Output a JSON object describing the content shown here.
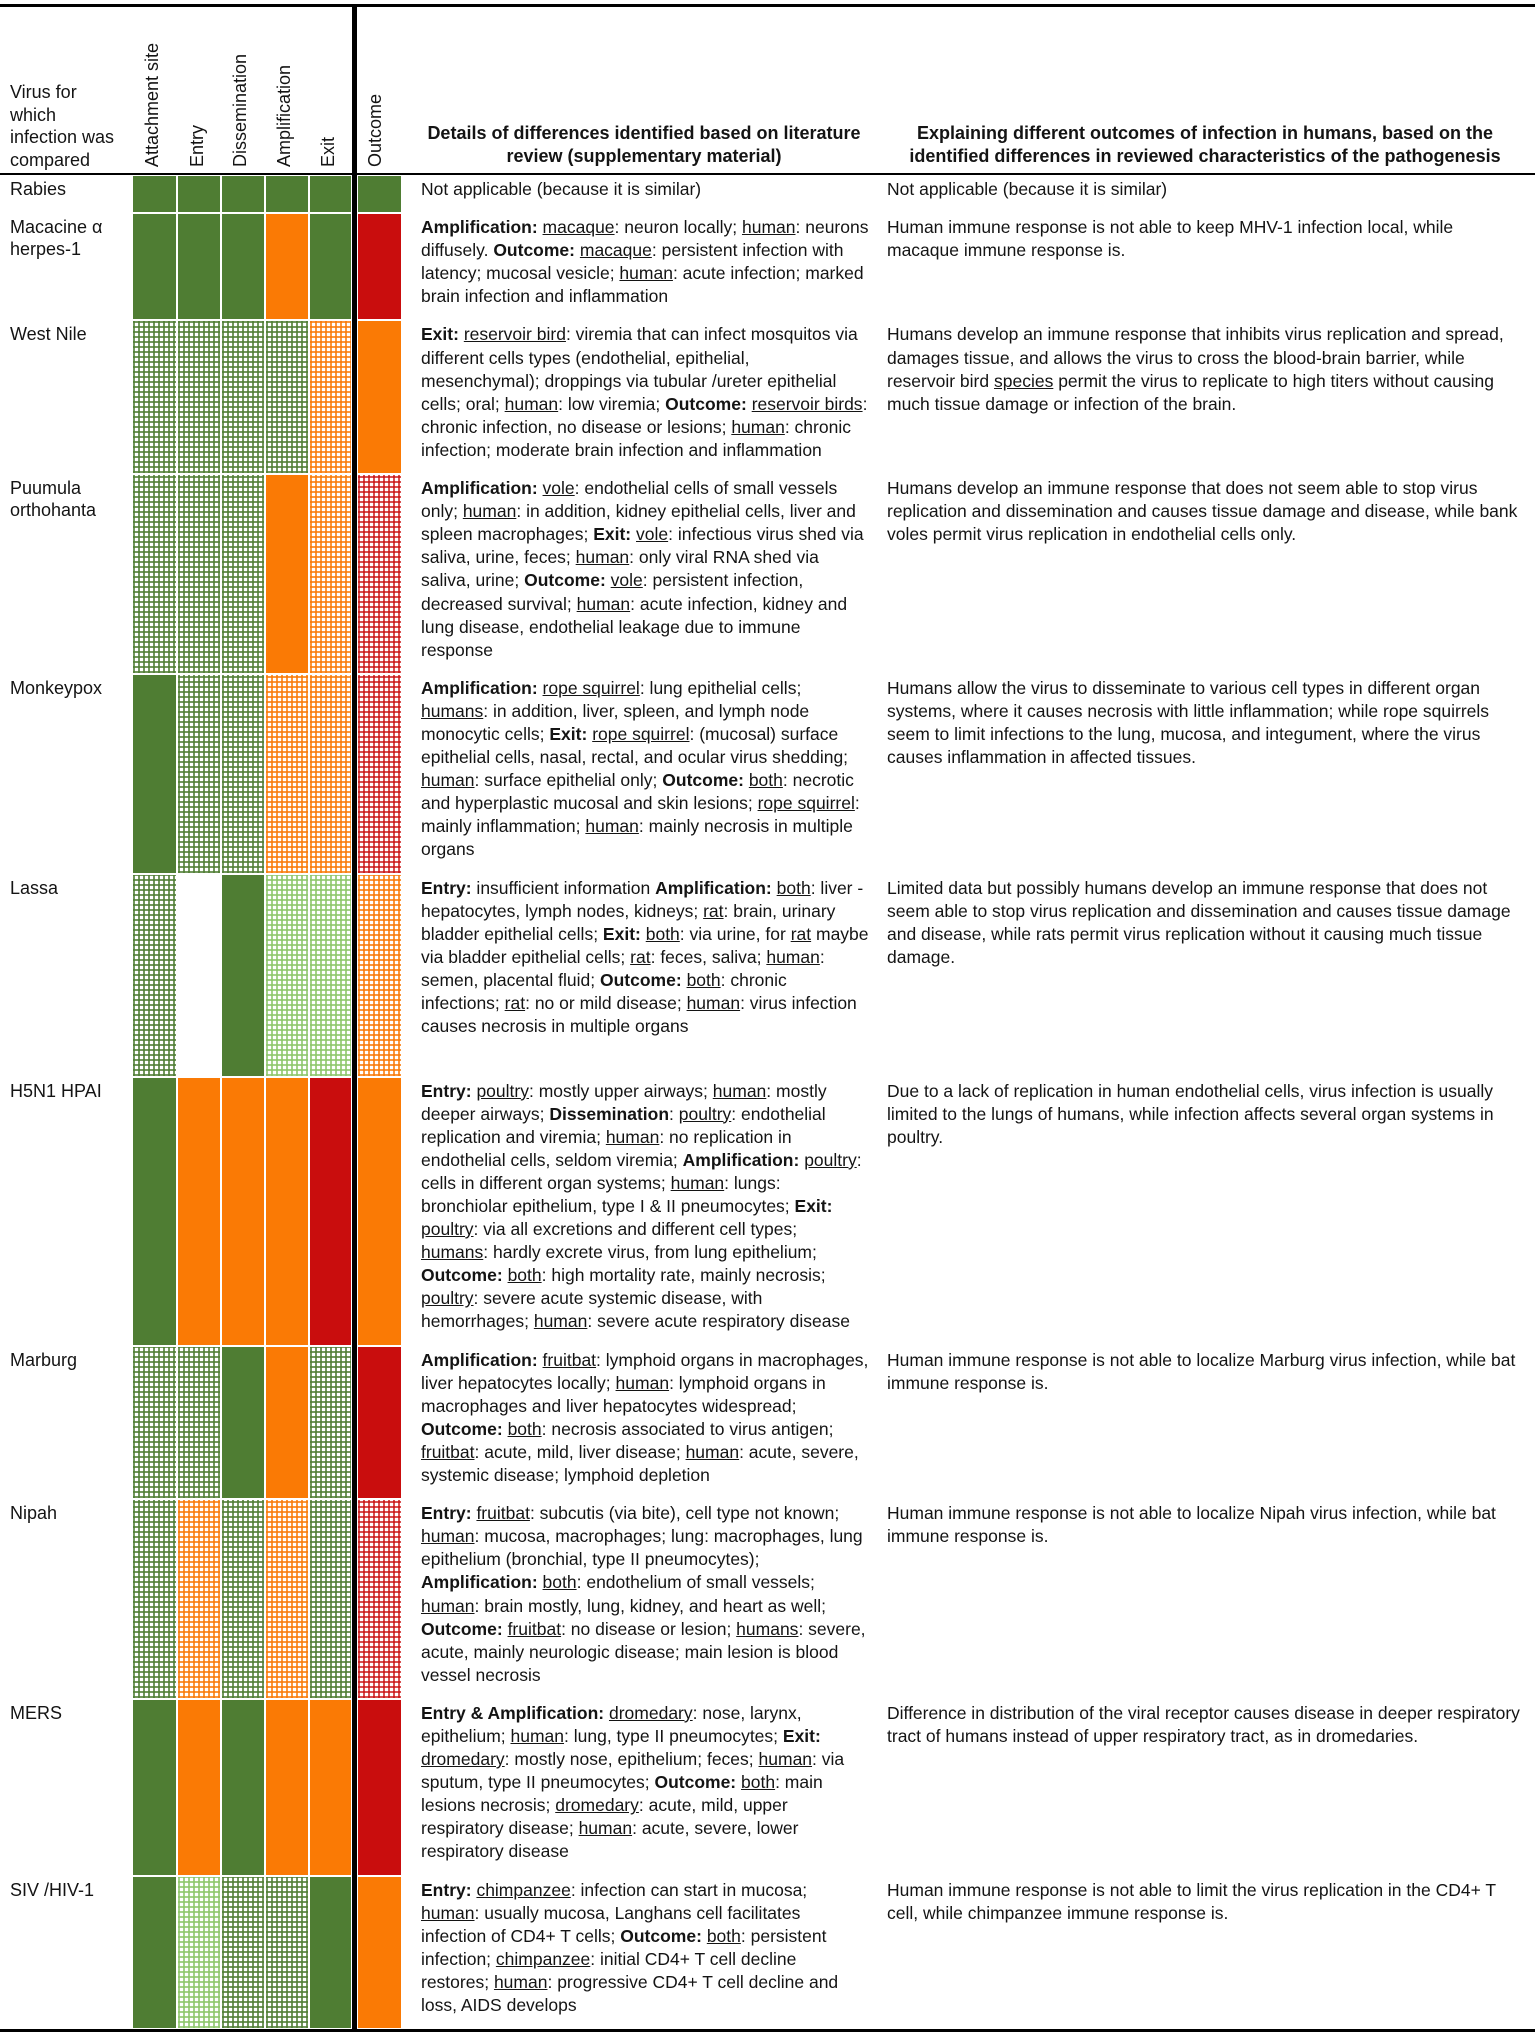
{
  "header": {
    "virus_col": "Virus for which infection was compared",
    "stage_cols": [
      "Attachment site",
      "Entry",
      "Dissemination",
      "Amplification",
      "Exit",
      "Outcome"
    ],
    "details_col": "Details of differences identified based on literature review (supplementary material)",
    "explaining_col": "Explaining different outcomes of infection in humans, based on the identified differences in reviewed characteristics of the pathogenesis"
  },
  "colors": {
    "green": "#4f7d33",
    "orange": "#fa7a05",
    "red": "#c90d0d",
    "light_green": "#8dc66a"
  },
  "cell_codes": {
    "green": "solid green",
    "orange": "solid orange",
    "red": "solid dark red",
    "green-hatch": "hatched green",
    "orange-hatch": "hatched orange",
    "red-hatch": "hatched dark red",
    "lightgreen-hatch": "hatched light green",
    "white": "no data (blank)"
  },
  "rows": [
    {
      "virus": "Rabies",
      "cells": [
        "green",
        "green",
        "green",
        "green",
        "green",
        "green"
      ],
      "details_html": "Not applicable (because it is similar)",
      "explaining_html": "Not applicable (because it is similar)"
    },
    {
      "virus": "Macacine α herpes-1",
      "cells": [
        "green",
        "green",
        "green",
        "orange",
        "green",
        "red"
      ],
      "details_html": "<b>Amplification:</b> <u>macaque</u>: neuron locally; <u>human</u>: neurons diffusely. <b>Outcome:</b> <u>macaque</u>: persistent infection with latency; mucosal vesicle; <u>human</u>: acute infection; marked brain infection and inflammation",
      "explaining_html": "Human immune response is not able to keep MHV-1 infection local, while macaque immune response is."
    },
    {
      "virus": "West Nile",
      "cells": [
        "green-hatch",
        "green-hatch",
        "green-hatch",
        "green-hatch",
        "orange-hatch",
        "orange"
      ],
      "details_html": "<b>Exit:</b> <u>reservoir bird</u>: viremia that can infect mosquitos via different cells types (endothelial, epithelial, mesenchymal); droppings via tubular /ureter epithelial cells; oral; <u>human</u>: low viremia; <b>Outcome:</b> <u>reservoir birds</u>: chronic infection, no disease or lesions; <u>human</u>: chronic infection; moderate brain infection and inflammation",
      "explaining_html": "Humans develop an immune response that inhibits virus replication and spread, damages tissue, and allows the virus to cross the blood-brain barrier, while reservoir bird <u>species</u> permit the virus to replicate to high titers without causing much tissue damage or infection of the brain."
    },
    {
      "virus": "Puumula orthohanta",
      "cells": [
        "green-hatch",
        "green-hatch",
        "green-hatch",
        "orange",
        "orange-hatch",
        "red-hatch"
      ],
      "details_html": "<b>Amplification:</b> <u>vole</u>: endothelial cells of small vessels only; <u>human</u>: in addition, kidney epithelial cells, liver and spleen macrophages; <b>Exit:</b> <u>vole</u>: infectious virus shed via saliva, urine, feces; <u>human</u>: only viral RNA shed via saliva, urine; <b>Outcome:</b> <u>vole</u>: persistent infection, decreased survival; <u>human</u>: acute infection, kidney and lung disease, endothelial leakage due to immune response",
      "explaining_html": "Humans develop an immune response that does not seem able to stop virus replication and dissemination and causes tissue damage and disease, while bank voles permit virus replication in endothelial cells only."
    },
    {
      "virus": "Monkeypox",
      "cells": [
        "green",
        "green-hatch",
        "green-hatch",
        "orange-hatch",
        "orange-hatch",
        "red-hatch"
      ],
      "details_html": "<b>Amplification:</b> <u>rope squirrel</u>: lung epithelial cells; <u>humans</u>: in addition, liver, spleen, and lymph node monocytic cells; <b>Exit:</b> <u>rope squirrel</u>: (mucosal) surface epithelial cells, nasal, rectal, and ocular virus shedding; <u>human</u>: surface epithelial only; <b>Outcome:</b> <u>both</u>: necrotic and hyperplastic mucosal and skin lesions; <u>rope squirrel</u>: mainly inflammation; <u>human</u>: mainly necrosis in multiple organs",
      "explaining_html": "Humans allow the virus to disseminate to various cell types in different organ systems, where it causes necrosis with little inflammation; while rope squirrels seem to limit infections to the lung, mucosa, and integument, where the virus causes inflammation in affected tissues."
    },
    {
      "virus": "Lassa",
      "cells": [
        "green-hatch",
        "white",
        "green",
        "lightgreen-hatch",
        "lightgreen-hatch",
        "orange-hatch"
      ],
      "details_html": "<b>Entry:</b> insufficient information <b>Amplification:</b> <u>both</u>: liver - hepatocytes, lymph nodes, kidneys; <u>rat</u>: brain, urinary bladder epithelial cells; <b>Exit:</b> <u>both</u>: via urine, for <u>rat</u> maybe via bladder epithelial cells; <u>rat</u>: feces, saliva; <u>human</u>: semen, placental fluid; <b>Outcome:</b> <u>both</u>: chronic infections; <u>rat</u>: no or mild disease; <u>human</u>: virus infection causes necrosis in multiple organs",
      "explaining_html": "Limited data but possibly humans develop an immune response that does not seem able to stop virus replication and dissemination and causes tissue damage and disease, while rats permit virus replication without it causing much tissue damage."
    },
    {
      "virus": "H5N1 HPAI",
      "cells": [
        "green",
        "orange",
        "orange",
        "orange",
        "red",
        "orange"
      ],
      "details_html": "<b>Entry:</b> <u>poultry</u>: mostly upper airways; <u>human</u>: mostly deeper airways; <b>Dissemination</b>: <u>poultry</u>: endothelial replication and viremia; <u>human</u>: no replication in endothelial cells, seldom viremia; <b>Amplification:</b> <u>poultry</u>: cells in different organ systems; <u>human</u>: lungs: bronchiolar epithelium, type I &amp; II pneumocytes; <b>Exit:</b> <u>poultry</u>: via all excretions and different cell types; <u>humans</u>: hardly excrete virus, from lung epithelium; <b>Outcome:</b> <u>both</u>: high mortality rate, mainly necrosis; <u>poultry</u>: severe acute systemic disease, with hemorrhages; <u>human</u>: severe acute respiratory disease",
      "explaining_html": "Due to a lack of replication in human endothelial cells, virus infection is usually limited to the lungs of humans, while infection affects several organ systems in poultry."
    },
    {
      "virus": "Marburg",
      "cells": [
        "green-hatch",
        "green-hatch",
        "green",
        "orange",
        "green-hatch",
        "red"
      ],
      "details_html": "<b>Amplification:</b> <u>fruitbat</u>: lymphoid organs in macrophages, liver hepatocytes locally; <u>human</u>: lymphoid organs in macrophages and liver hepatocytes widespread; <b>Outcome:</b> <u>both</u>: necrosis associated to virus antigen; <u>fruitbat</u>: acute, mild, liver disease; <u>human</u>: acute, severe, systemic disease; lymphoid depletion",
      "explaining_html": "Human immune response is not able to localize Marburg virus infection, while bat immune response is."
    },
    {
      "virus": "Nipah",
      "cells": [
        "green-hatch",
        "orange-hatch",
        "green-hatch",
        "orange-hatch",
        "green-hatch",
        "red-hatch"
      ],
      "details_html": "<b>Entry:</b> <u>fruitbat</u>: subcutis (via bite), cell type not known; <u>human</u>: mucosa, macrophages; lung: macrophages, lung epithelium (bronchial, type II pneumocytes); <b>Amplification:</b> <u>both</u>: endothelium of small vessels; <u>human</u>: brain mostly, lung, kidney, and heart as well; <b>Outcome:</b> <u>fruitbat</u>: no disease or lesion; <u>humans</u>: severe, acute, mainly neurologic disease; main lesion is blood vessel necrosis",
      "explaining_html": "Human immune response is not able to localize Nipah virus infection, while bat immune response is."
    },
    {
      "virus": "MERS",
      "cells": [
        "green",
        "orange",
        "green",
        "orange",
        "orange",
        "red"
      ],
      "details_html": "<b>Entry &amp; Amplification:</b> <u>dromedary</u>: nose, larynx, epithelium; <u>human</u>: lung, type II pneumocytes; <b>Exit:</b> <u>dromedary</u>: mostly nose, epithelium; feces; <u>human</u>: via sputum, type II pneumocytes; <b>Outcome:</b> <u>both</u>: main lesions necrosis; <u>dromedary</u>: acute, mild, upper respiratory disease; <u>human</u>: acute, severe, lower respiratory disease",
      "explaining_html": "Difference in distribution of the viral receptor causes disease in deeper respiratory tract of humans instead of upper respiratory tract, as in dromedaries."
    },
    {
      "virus": "SIV /HIV-1",
      "cells": [
        "green",
        "lightgreen-hatch",
        "green-hatch",
        "green-hatch",
        "green",
        "orange"
      ],
      "details_html": "<b>Entry:</b> <u>chimpanzee</u>: infection can start in mucosa; <u>human</u>: usually mucosa, Langhans cell facilitates infection of CD4+ T cells; <b>Outcome:</b> <u>both</u>: persistent infection; <u>chimpanzee</u>: initial CD4+ T cell decline restores; <u>human</u>: progressive CD4+ T cell decline and loss, AIDS develops",
      "explaining_html": "Human immune response is not able to limit the virus replication in the CD4+ T cell, while chimpanzee immune response is."
    }
  ]
}
